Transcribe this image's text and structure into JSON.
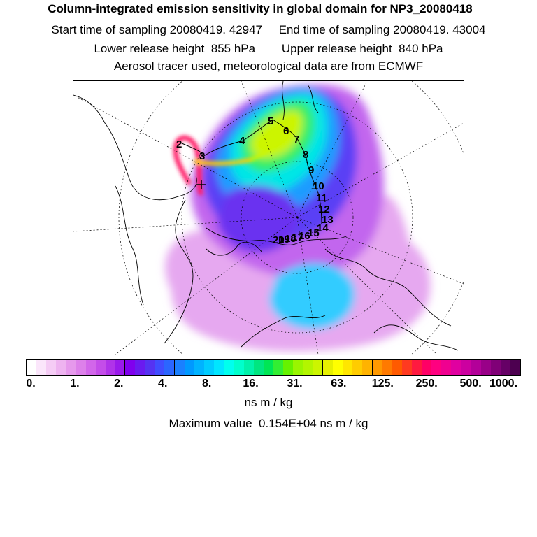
{
  "title": "Column-integrated emission sensitivity in global domain for NP3_20080418",
  "sampling": {
    "start_label": "Start time of sampling",
    "start_value": "20080419. 42947",
    "end_label": "End time of sampling",
    "end_value": "20080419. 43004"
  },
  "release": {
    "lower_label": "Lower release height",
    "lower_value": "855 hPa",
    "upper_label": "Upper release height",
    "upper_value": "840 hPa"
  },
  "note": "Aerosol tracer used, meteorological data are from ECMWF",
  "trajectory_labels": [
    "2",
    "3",
    "4",
    "5",
    "6",
    "7",
    "8",
    "9",
    "10",
    "11",
    "12",
    "13",
    "14",
    "15",
    "16",
    "17",
    "18",
    "19",
    "20"
  ],
  "colorbar": {
    "ticks": [
      "0.",
      "1.",
      "2.",
      "4.",
      "8.",
      "16.",
      "31.",
      "63.",
      "125.",
      "250.",
      "500.",
      "1000."
    ],
    "colors": [
      "#ffffff",
      "#fbe6fb",
      "#f5ccf5",
      "#eeb3f0",
      "#e699ec",
      "#dd80ea",
      "#d266ea",
      "#c44de9",
      "#b033e9",
      "#9a1aeb",
      "#8000ee",
      "#6a1af0",
      "#5533f2",
      "#404dff",
      "#2b66ff",
      "#1a80ff",
      "#0099ff",
      "#00b3ff",
      "#00ccff",
      "#00e6ff",
      "#00ffee",
      "#00ffcc",
      "#00f2aa",
      "#00e680",
      "#00e655",
      "#33ee33",
      "#66f200",
      "#99f500",
      "#b3f500",
      "#ccf500",
      "#e6f000",
      "#ffff00",
      "#ffe600",
      "#ffcc00",
      "#ffb300",
      "#ff9900",
      "#ff7a00",
      "#ff5a00",
      "#ff3a20",
      "#ff1a40",
      "#ff0066",
      "#ff0080",
      "#f00090",
      "#e000a0",
      "#cc00a0",
      "#b30099",
      "#990088",
      "#800077",
      "#660066",
      "#4d0050"
    ],
    "units": "ns m / kg"
  },
  "max_value": {
    "label": "Maximum value",
    "value": "0.154E+04",
    "units": "ns m / kg"
  }
}
